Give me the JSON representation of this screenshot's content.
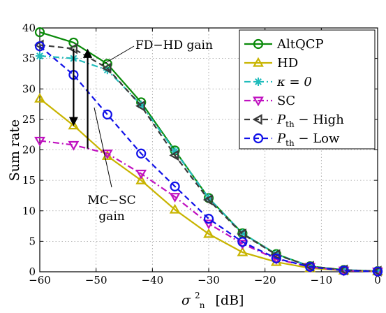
{
  "chart_data": {
    "type": "line",
    "xlabel": "σn² [dB]",
    "ylabel": "Sum rate",
    "xlim": [
      -60,
      0
    ],
    "ylim": [
      0,
      40
    ],
    "xticks": [
      -60,
      -50,
      -40,
      -30,
      -20,
      -10,
      0
    ],
    "yticks": [
      0,
      5,
      10,
      15,
      20,
      25,
      30,
      35,
      40
    ],
    "xtick_labels": [
      "−60",
      "−50",
      "−40",
      "−30",
      "−20",
      "−10",
      "0"
    ],
    "ytick_labels": [
      "0",
      "5",
      "10",
      "15",
      "20",
      "25",
      "30",
      "35",
      "40"
    ],
    "grid": true,
    "legend_position": "top-right",
    "x": [
      -60,
      -54,
      -48,
      -42,
      -36,
      -30,
      -24,
      -18,
      -12,
      -6,
      0
    ],
    "series": [
      {
        "name": "AltQCP",
        "color": "#0a8a0a",
        "marker": "circle",
        "dash": "solid",
        "values": [
          39.3,
          37.6,
          34.1,
          27.8,
          19.9,
          12.1,
          6.3,
          2.9,
          0.9,
          0.3,
          0.1
        ]
      },
      {
        "name": "HD",
        "color": "#c8b400",
        "marker": "triangle-up",
        "dash": "solid",
        "values": [
          28.4,
          24.0,
          19.0,
          15.0,
          10.2,
          6.2,
          3.2,
          1.6,
          0.6,
          0.2,
          0.05
        ]
      },
      {
        "name": "κ = 0",
        "color": "#21bcbc",
        "marker": "star",
        "dash": "dashdot",
        "values": [
          35.4,
          35.0,
          33.1,
          27.4,
          19.8,
          12.1,
          6.3,
          2.9,
          0.9,
          0.3,
          0.1
        ]
      },
      {
        "name": "SC",
        "color": "#c011c0",
        "marker": "triangle-down",
        "dash": "dashdot",
        "values": [
          21.5,
          20.8,
          19.4,
          16.1,
          12.3,
          7.9,
          4.6,
          2.1,
          0.8,
          0.2,
          0.05
        ]
      },
      {
        "name": "Pth − High",
        "color": "#3a3a3a",
        "marker": "triangle-left",
        "dash": "dash",
        "values": [
          37.2,
          36.6,
          33.4,
          27.2,
          19.1,
          11.8,
          6.2,
          2.8,
          0.9,
          0.3,
          0.1
        ]
      },
      {
        "name": "Pth − Low",
        "color": "#1010e8",
        "marker": "circle",
        "dash": "dash",
        "values": [
          37.0,
          32.3,
          25.8,
          19.4,
          14.0,
          8.7,
          4.9,
          2.2,
          0.8,
          0.2,
          0.05
        ]
      }
    ],
    "annotations": [
      {
        "text": "FD−HD gain",
        "arrows": [
          {
            "x": -54,
            "y_from": 36.6,
            "y_to": 24.2
          },
          {
            "x": -51.5,
            "y_from": 20.2,
            "y_to": 36.3
          }
        ]
      },
      {
        "text_lines": [
          "MC−SC",
          "gain"
        ]
      }
    ]
  },
  "legend_labels": {
    "s0": "AltQCP",
    "s1": "HD",
    "s2": "κ = 0",
    "s3": "SC",
    "s4_main": "P",
    "s4_sub": "th",
    "s4_rest": " − High",
    "s5_main": "P",
    "s5_sub": "th",
    "s5_rest": " − Low"
  },
  "axis_text": {
    "ylabel": "Sum rate",
    "xlabel_main": "σ",
    "xlabel_sup": "2",
    "xlabel_sub": "n",
    "xlabel_unit": "[dB]"
  },
  "annotation_text": {
    "fdhd": "FD−HD gain",
    "mcsc_line1": "MC−SC",
    "mcsc_line2": "gain"
  }
}
